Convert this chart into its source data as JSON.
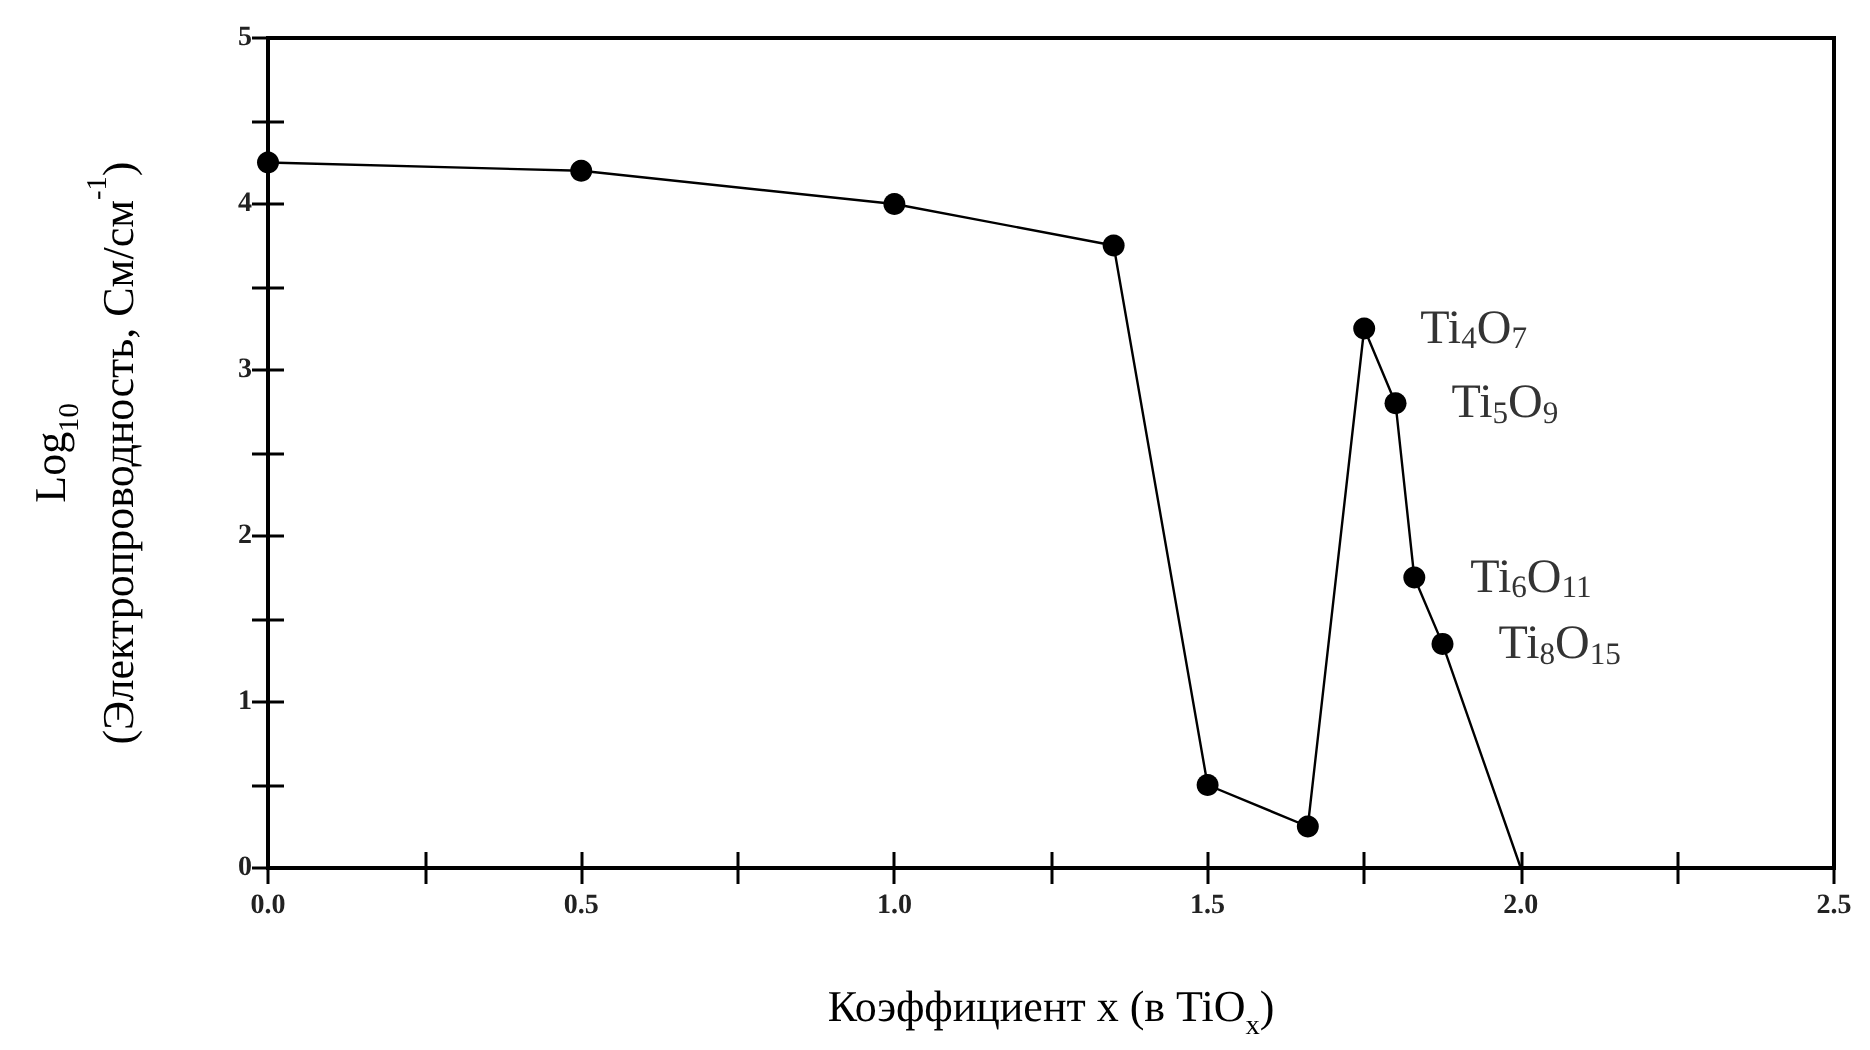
{
  "chart_data": {
    "type": "line",
    "xlabel": "Коэффициент x (в TiO$_{x}$)",
    "ylabel": "Log$_{10}$\n(Электропроводность, См/см$^{-1}$)",
    "series": [
      {
        "color": "#000000",
        "marker": "circle",
        "x": [
          0,
          0.5,
          1.0,
          1.35,
          1.5,
          1.66,
          1.75,
          1.8,
          1.83,
          1.875
        ],
        "values": [
          4.25,
          4.2,
          4.0,
          3.75,
          0.5,
          0.25,
          3.25,
          2.8,
          1.75,
          1.35
        ]
      },
      {
        "color": "#000000",
        "marker": "none",
        "x": [
          1.875,
          2.0
        ],
        "values": [
          1.35,
          0
        ]
      }
    ],
    "xlim": [
      0,
      2.5
    ],
    "xticks": [
      {
        "value": 0,
        "label": "0.0"
      },
      {
        "value": 0.5,
        "label": "0.5"
      },
      {
        "value": 1,
        "label": "1.0"
      },
      {
        "value": 1.5,
        "label": "1.5"
      },
      {
        "value": 2,
        "label": "2.0"
      },
      {
        "value": 2.5,
        "label": "2.5"
      }
    ],
    "ylim": [
      0,
      5
    ],
    "yticks": [
      0,
      1,
      2,
      3,
      4,
      5
    ],
    "annotations": [
      {
        "text": "Ti$_{4}$O$_{7}$",
        "x": 1.75,
        "y": 3.25
      },
      {
        "text": "Ti$_{5}$O$_{9}$",
        "x": 1.8,
        "y": 2.8
      },
      {
        "text": "Ti$_{6}$O$_{11}$",
        "x": 1.83,
        "y": 1.75
      },
      {
        "text": "Ti$_{8}$O$_{15}$",
        "x": 1.875,
        "y": 1.35
      }
    ],
    "grid": false
  }
}
